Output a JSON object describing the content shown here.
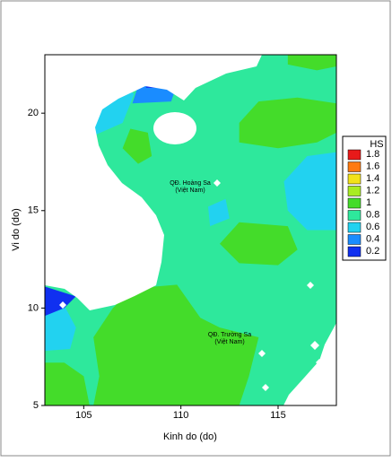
{
  "chart_data": {
    "type": "contour",
    "xlabel": "Kinh do (do)",
    "ylabel": "Vi do (do)",
    "xlim": [
      103,
      118
    ],
    "ylim": [
      5,
      23
    ],
    "xticks": [
      105,
      110,
      115
    ],
    "yticks": [
      5,
      10,
      15,
      20
    ],
    "annotations": [
      [
        "QĐ. Hoàng Sa",
        "(Việt Nam)"
      ],
      [
        "QĐ. Trường Sa",
        "(Việt Nam)"
      ]
    ],
    "legend": {
      "title": "HS",
      "levels": [
        1.8,
        1.6,
        1.4,
        1.2,
        1,
        0.8,
        0.6,
        0.4,
        0.2
      ],
      "colors": [
        "#e81a1a",
        "#ff7a10",
        "#f2e21a",
        "#a8ec22",
        "#44dc2a",
        "#2ee89c",
        "#22d2f0",
        "#1a8cff",
        "#1030f0"
      ]
    },
    "regions": [
      {
        "value": 0.8,
        "lon": [
          103,
          118,
          118,
          103
        ],
        "lat": [
          5,
          5,
          23,
          23
        ]
      },
      {
        "value": 1,
        "lon": [
          105.5,
          113,
          113.5,
          114,
          112,
          111,
          109.8,
          107.5,
          106.5,
          105.5,
          105.8
        ],
        "lat": [
          5,
          5,
          6.5,
          8.5,
          9,
          9.5,
          11.2,
          11,
          10,
          8.5,
          6.5
        ]
      },
      {
        "value": 1,
        "lon": [
          103,
          105.3,
          105,
          104,
          103
        ],
        "lat": [
          5,
          5,
          6.5,
          7.2,
          7.2
        ]
      },
      {
        "value": 1,
        "lon": [
          113,
          115,
          117,
          118,
          118,
          116,
          114,
          113
        ],
        "lat": [
          18.5,
          18.2,
          18.5,
          19,
          20.5,
          20.8,
          20.6,
          19.5
        ]
      },
      {
        "value": 1,
        "lon": [
          115.5,
          117,
          118,
          118,
          115.5
        ],
        "lat": [
          22.5,
          22.2,
          22.4,
          23,
          23
        ]
      },
      {
        "value": 1,
        "lon": [
          107,
          107.8,
          108.5,
          108.3,
          107.4
        ],
        "lat": [
          18.2,
          17.4,
          17.8,
          19,
          19.2
        ]
      },
      {
        "value": 1,
        "lon": [
          112,
          113,
          115,
          116,
          115.5,
          113
        ],
        "lat": [
          13.3,
          12.3,
          12.2,
          13,
          14.2,
          14.4
        ]
      },
      {
        "value": 0.6,
        "lon": [
          115.5,
          116.5,
          118,
          118,
          116.5,
          115.3
        ],
        "lat": [
          15,
          14,
          14,
          18,
          17.8,
          16.5
        ]
      },
      {
        "value": 0.6,
        "lon": [
          105.4,
          107,
          107.6,
          106.5,
          105.4
        ],
        "lat": [
          18.8,
          19.5,
          21,
          21.6,
          21
        ]
      },
      {
        "value": 0.6,
        "lon": [
          103,
          104.3,
          104.6,
          103.8,
          103
        ],
        "lat": [
          7.8,
          7.9,
          9,
          10.5,
          10.5
        ]
      },
      {
        "value": 0.6,
        "lon": [
          111.5,
          112.5,
          112.3,
          111.4
        ],
        "lat": [
          14.2,
          14.6,
          15.6,
          15.2
        ]
      },
      {
        "value": 0.4,
        "lon": [
          107.5,
          109.5,
          109.8,
          108.8,
          107.8
        ],
        "lat": [
          20.5,
          20.6,
          21.5,
          21.9,
          21.4
        ]
      },
      {
        "value": 0.2,
        "lon": [
          103,
          104,
          104.6,
          103
        ],
        "lat": [
          9.6,
          10,
          10.6,
          11.1
        ]
      },
      {
        "value": 0.2,
        "lon": [
          108.2,
          109.4,
          109.2,
          108.4
        ],
        "lat": [
          21.3,
          21.3,
          21.9,
          21.8
        ]
      }
    ]
  }
}
